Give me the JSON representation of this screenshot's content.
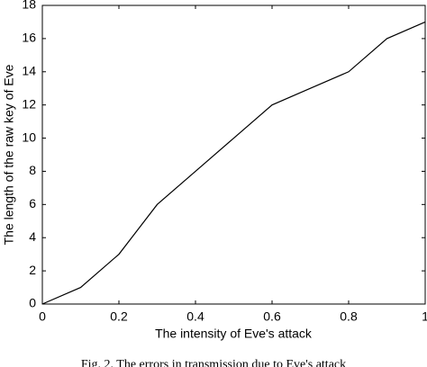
{
  "chart_data": {
    "type": "line",
    "x": [
      0,
      0.1,
      0.2,
      0.3,
      0.4,
      0.5,
      0.6,
      0.7,
      0.8,
      0.9,
      1
    ],
    "values": [
      0,
      1,
      3,
      6,
      8,
      10,
      12,
      13,
      14,
      16,
      17
    ],
    "color": "#000000",
    "x_label": "The intensity of Eve's attack",
    "y_label": "The length of the raw key of Eve",
    "caption": "Fig. 2.  The errors in transmission due to Eve's attack",
    "xlim": [
      0,
      1
    ],
    "xticks": [
      0,
      0.2,
      0.4,
      0.6,
      0.8,
      1
    ],
    "ylim": [
      0,
      18
    ],
    "yticks": [
      0,
      2,
      4,
      6,
      8,
      10,
      12,
      14,
      16,
      18
    ],
    "grid": false
  }
}
